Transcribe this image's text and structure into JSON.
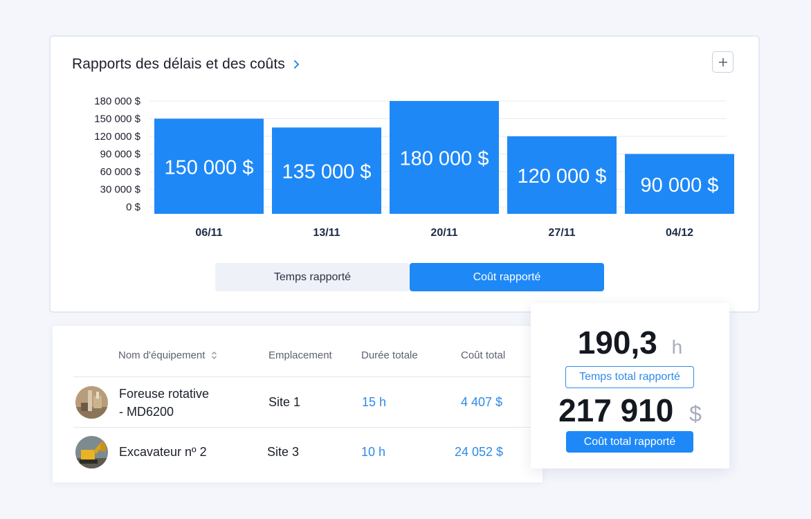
{
  "report": {
    "title": "Rapports des délais et des coûts",
    "add_label": "+",
    "toggle": {
      "time_label": "Temps rapporté",
      "cost_label": "Coût rapporté",
      "active": "cost"
    }
  },
  "chart_data": {
    "type": "bar",
    "categories": [
      "06/11",
      "13/11",
      "20/11",
      "27/11",
      "04/12"
    ],
    "values": [
      150000,
      135000,
      180000,
      120000,
      90000
    ],
    "data_labels": [
      "150 000 $",
      "135 000 $",
      "180 000 $",
      "120 000 $",
      "90 000 $"
    ],
    "y_ticks": [
      0,
      30000,
      60000,
      90000,
      120000,
      150000,
      180000
    ],
    "y_tick_labels": [
      "0 $",
      "30 000 $",
      "60 000 $",
      "90 000 $",
      "120 000 $",
      "150 000 $",
      "180 000 $"
    ],
    "ylim": [
      0,
      180000
    ],
    "grid": true,
    "bar_color": "#1e88f7"
  },
  "table": {
    "headers": {
      "name": "Nom d'équipement",
      "location": "Emplacement",
      "duration": "Durée totale",
      "cost": "Coût total"
    },
    "rows": [
      {
        "name_line1": "Foreuse rotative",
        "name_line2": "- MD6200",
        "location": "Site 1",
        "duration": "15 h",
        "cost": "4 407 $"
      },
      {
        "name_line1": "Excavateur nº 2",
        "name_line2": "",
        "location": "Site 3",
        "duration": "10 h",
        "cost": "24 052 $"
      }
    ]
  },
  "summary": {
    "hours_value": "190,3",
    "hours_unit": "h",
    "hours_label": "Temps total rapporté",
    "cost_value": "217 910",
    "cost_unit": "$",
    "cost_label": "Coût total rapporté"
  },
  "colors": {
    "accent": "#1e88f7",
    "link": "#2f8ae8"
  }
}
